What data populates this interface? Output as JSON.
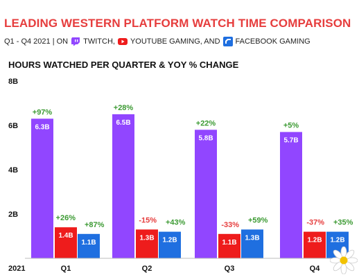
{
  "title": "LEADING WESTERN PLATFORM WATCH TIME COMPARISON",
  "subtitle": {
    "period": "Q1 - Q4 2021 | ON",
    "twitch": "TWITCH,",
    "youtube": "YOUTUBE GAMING, AND",
    "facebook": "FACEBOOK GAMING",
    "twitch_icon": "twitch-icon",
    "youtube_icon": "youtube-icon",
    "facebook_icon": "facebook-icon"
  },
  "chart_data": {
    "type": "bar",
    "title": "HOURS WATCHED PER QUARTER & YOY % CHANGE",
    "year_label": "2021",
    "categories": [
      "Q1",
      "Q2",
      "Q3",
      "Q4"
    ],
    "ylim": [
      0,
      8
    ],
    "yticks": [
      2,
      4,
      6,
      8
    ],
    "ytick_labels": [
      "2B",
      "4B",
      "6B",
      "8B"
    ],
    "grid": false,
    "series": [
      {
        "name": "TWITCH",
        "color": "#9146ff",
        "values": [
          6.3,
          6.5,
          5.8,
          5.7
        ],
        "value_labels": [
          "6.3B",
          "6.5B",
          "5.8B",
          "5.7B"
        ],
        "yoy": [
          "+97%",
          "+28%",
          "+22%",
          "+5%"
        ],
        "yoy_colors": [
          "#3c9a33",
          "#3c9a33",
          "#3c9a33",
          "#3c9a33"
        ]
      },
      {
        "name": "YOUTUBE GAMING",
        "color": "#ee1c1c",
        "values": [
          1.4,
          1.3,
          1.1,
          1.2
        ],
        "value_labels": [
          "1.4B",
          "1.3B",
          "1.1B",
          "1.2B"
        ],
        "yoy": [
          "+26%",
          "-15%",
          "-33%",
          "-37%"
        ],
        "yoy_colors": [
          "#3c9a33",
          "#e63d3d",
          "#e63d3d",
          "#e63d3d"
        ]
      },
      {
        "name": "FACEBOOK GAMING",
        "color": "#1f6fe0",
        "values": [
          1.1,
          1.2,
          1.3,
          1.2
        ],
        "value_labels": [
          "1.1B",
          "1.2B",
          "1.3B",
          "1.2B"
        ],
        "yoy": [
          "+87%",
          "+43%",
          "+59%",
          "+35%"
        ],
        "yoy_colors": [
          "#3c9a33",
          "#3c9a33",
          "#3c9a33",
          "#3c9a33"
        ]
      }
    ]
  }
}
